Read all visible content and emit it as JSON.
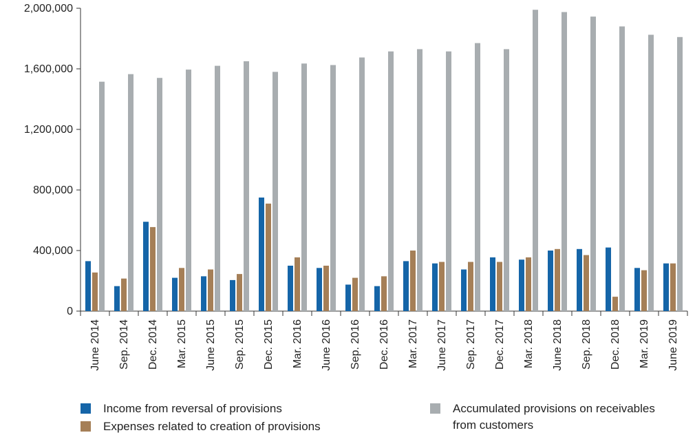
{
  "chart_data": {
    "type": "bar",
    "categories": [
      "June 2014",
      "Sep. 2014",
      "Dec. 2014",
      "Mar. 2015",
      "June 2015",
      "Sep. 2015",
      "Dec. 2015",
      "Mar. 2016",
      "June 2016",
      "Sep. 2016",
      "Dec. 2016",
      "Mar. 2017",
      "June 2017",
      "Sep. 2017",
      "Dec. 2017",
      "Mar. 2018",
      "June 2018",
      "Sep. 2018",
      "Dec. 2018",
      "Mar. 2019",
      "June 2019"
    ],
    "series": [
      {
        "name": "Income from reversal of provisions",
        "color": "#1565a8",
        "values": [
          330000,
          165000,
          590000,
          220000,
          230000,
          205000,
          750000,
          300000,
          285000,
          175000,
          165000,
          330000,
          315000,
          275000,
          355000,
          340000,
          400000,
          410000,
          420000,
          285000,
          315000
        ]
      },
      {
        "name": "Expenses related to creation of provisions",
        "color": "#a57f57",
        "values": [
          255000,
          215000,
          555000,
          285000,
          275000,
          245000,
          710000,
          355000,
          300000,
          220000,
          230000,
          400000,
          325000,
          325000,
          325000,
          355000,
          410000,
          370000,
          95000,
          270000,
          315000
        ]
      },
      {
        "name": "Accumulated provisions on receivables from customers",
        "color": "#a8adb0",
        "values": [
          1515000,
          1565000,
          1540000,
          1595000,
          1620000,
          1650000,
          1580000,
          1635000,
          1625000,
          1675000,
          1715000,
          1730000,
          1715000,
          1770000,
          1730000,
          1990000,
          1975000,
          1945000,
          1880000,
          1825000,
          1810000
        ]
      }
    ],
    "yticks": [
      "0",
      "400,000",
      "800,000",
      "1,200,000",
      "1,600,000",
      "2,000,000"
    ],
    "ylim": [
      0,
      2000000
    ],
    "legend_position": "bottom",
    "grid": false
  },
  "legend": {
    "item1": "Income from reversal of provisions",
    "item2": "Expenses related to creation of provisions",
    "item3_line1": "Accumulated provisions on receivables",
    "item3_line2": "from customers"
  }
}
